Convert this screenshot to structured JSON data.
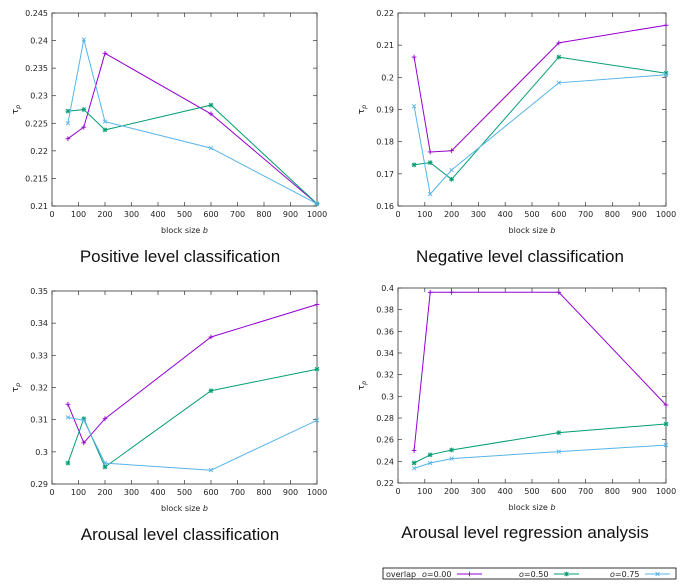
{
  "chart_data": [
    {
      "type": "line",
      "title": "Positive level classification",
      "xlabel": "block size b",
      "ylabel": "τp",
      "xlim": [
        0,
        1000
      ],
      "ylim": [
        0.21,
        0.245
      ],
      "xticks": [
        0,
        100,
        200,
        300,
        400,
        500,
        600,
        700,
        800,
        900,
        1000
      ],
      "yticks": [
        0.21,
        0.215,
        0.22,
        0.225,
        0.23,
        0.235,
        0.24,
        0.245
      ],
      "ytick_labels": [
        "0.21",
        "0.215",
        "0.22",
        "0.225",
        "0.23",
        "0.235",
        "0.24",
        "0.245"
      ],
      "series": [
        {
          "name": "o=0.00",
          "x": [
            60,
            120,
            200,
            600,
            1000
          ],
          "y": [
            0.2222,
            0.2243,
            0.2377,
            0.2267,
            0.2104
          ]
        },
        {
          "name": "o=0.50",
          "x": [
            60,
            120,
            200,
            600,
            1000
          ],
          "y": [
            0.2272,
            0.2275,
            0.2238,
            0.2283,
            0.2104
          ]
        },
        {
          "name": "o=0.75",
          "x": [
            60,
            120,
            200,
            600,
            1000
          ],
          "y": [
            0.225,
            0.2402,
            0.2253,
            0.2205,
            0.2104
          ]
        }
      ]
    },
    {
      "type": "line",
      "title": "Negative level classification",
      "xlabel": "block size b",
      "ylabel": "τp",
      "xlim": [
        0,
        1000
      ],
      "ylim": [
        0.16,
        0.22
      ],
      "xticks": [
        0,
        100,
        200,
        300,
        400,
        500,
        600,
        700,
        800,
        900,
        1000
      ],
      "yticks": [
        0.16,
        0.17,
        0.18,
        0.19,
        0.2,
        0.21,
        0.22
      ],
      "ytick_labels": [
        "0.16",
        "0.17",
        "0.18",
        "0.19",
        "0.2",
        "0.21",
        "0.22"
      ],
      "series": [
        {
          "name": "o=0.00",
          "x": [
            60,
            120,
            200,
            600,
            1000
          ],
          "y": [
            0.2063,
            0.1768,
            0.1772,
            0.2107,
            0.2162
          ]
        },
        {
          "name": "o=0.50",
          "x": [
            60,
            120,
            200,
            600,
            1000
          ],
          "y": [
            0.1728,
            0.1735,
            0.1683,
            0.2063,
            0.2013
          ]
        },
        {
          "name": "o=0.75",
          "x": [
            60,
            120,
            200,
            600,
            1000
          ],
          "y": [
            0.191,
            0.1637,
            0.1712,
            0.1983,
            0.2008
          ]
        }
      ]
    },
    {
      "type": "line",
      "title": "Arousal level classification",
      "xlabel": "block size b",
      "ylabel": "τp",
      "xlim": [
        0,
        1000
      ],
      "ylim": [
        0.29,
        0.35
      ],
      "xticks": [
        0,
        100,
        200,
        300,
        400,
        500,
        600,
        700,
        800,
        900,
        1000
      ],
      "yticks": [
        0.29,
        0.3,
        0.31,
        0.32,
        0.33,
        0.34,
        0.35
      ],
      "ytick_labels": [
        "0.29",
        "0.3",
        "0.31",
        "0.32",
        "0.33",
        "0.34",
        "0.35"
      ],
      "series": [
        {
          "name": "o=0.00",
          "x": [
            60,
            120,
            200,
            600,
            1000
          ],
          "y": [
            0.3148,
            0.3028,
            0.3103,
            0.3357,
            0.3458
          ]
        },
        {
          "name": "o=0.50",
          "x": [
            60,
            120,
            200,
            600,
            1000
          ],
          "y": [
            0.2965,
            0.3103,
            0.2953,
            0.319,
            0.3257
          ]
        },
        {
          "name": "o=0.75",
          "x": [
            60,
            120,
            200,
            600,
            1000
          ],
          "y": [
            0.3107,
            0.3098,
            0.2965,
            0.2943,
            0.3098
          ]
        }
      ]
    },
    {
      "type": "line",
      "title": "Arousal level regression analysis",
      "xlabel": "block size b",
      "ylabel": "τp",
      "xlim": [
        0,
        1000
      ],
      "ylim": [
        0.22,
        0.4
      ],
      "xticks": [
        0,
        100,
        200,
        300,
        400,
        500,
        600,
        700,
        800,
        900,
        1000
      ],
      "yticks": [
        0.22,
        0.24,
        0.26,
        0.28,
        0.3,
        0.32,
        0.34,
        0.36,
        0.38,
        0.4
      ],
      "ytick_labels": [
        "0.22",
        "0.24",
        "0.26",
        "0.28",
        "0.3",
        "0.32",
        "0.34",
        "0.36",
        "0.38",
        "0.4"
      ],
      "series": [
        {
          "name": "o=0.00",
          "x": [
            60,
            120,
            200,
            600,
            1000
          ],
          "y": [
            0.25,
            0.396,
            0.396,
            0.396,
            0.292
          ]
        },
        {
          "name": "o=0.50",
          "x": [
            60,
            120,
            200,
            600,
            1000
          ],
          "y": [
            0.2385,
            0.246,
            0.2505,
            0.2665,
            0.2745
          ]
        },
        {
          "name": "o=0.75",
          "x": [
            60,
            120,
            200,
            600,
            1000
          ],
          "y": [
            0.2335,
            0.2385,
            0.2425,
            0.249,
            0.255
          ]
        }
      ]
    }
  ],
  "legend": {
    "prefix": "overlap",
    "entries": [
      {
        "label": "o=0.00",
        "color": "#9400d3"
      },
      {
        "label": "o=0.50",
        "color": "#009e73"
      },
      {
        "label": "o=0.75",
        "color": "#56b4e9"
      }
    ]
  },
  "colors": {
    "series": [
      "#9400d3",
      "#009e73",
      "#56b4e9"
    ],
    "axis": "#333333"
  }
}
